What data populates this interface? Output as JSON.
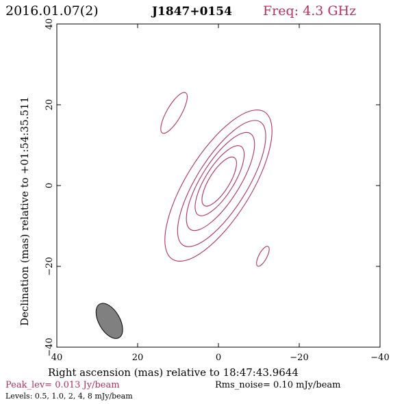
{
  "header": {
    "date": "2016.01.07(2)",
    "source": "J1847+0154",
    "frequency": "Freq: 4.3 GHz"
  },
  "footer": {
    "peak": "Peak_lev=  0.013 Jy/beam",
    "rms": "Rms_noise= 0.10 mJy/beam",
    "levels": "Levels: 0.5, 1.0,   2,   4,   8 mJy/beam"
  },
  "colors": {
    "contour": "#b03060",
    "beam_fill": "#808080",
    "axes": "#000000"
  },
  "chart_data": {
    "type": "contour",
    "title": "",
    "xlabel": "Right ascension (mas) relative to 18:47:43.9644",
    "ylabel": "Declination (mas) relative to +01:54:35.511",
    "xlim": [
      40,
      -40
    ],
    "ylim": [
      -40,
      40
    ],
    "x_ticks": [
      40,
      20,
      0,
      -20,
      -40
    ],
    "y_ticks": [
      -40,
      -20,
      0,
      20,
      40
    ],
    "x_tick_labels": [
      "40",
      "20",
      "0",
      "−20",
      "−40"
    ],
    "y_tick_labels": [
      "−40",
      "−20",
      "0",
      "20",
      "40"
    ],
    "contour_levels_mJy": [
      0.5,
      1.0,
      2,
      4,
      8
    ],
    "peak_Jy_per_beam": 0.013,
    "rms_mJy_per_beam": 0.1,
    "beam": {
      "x": 27,
      "y": -33.5,
      "major": 9.6,
      "minor": 5.2,
      "pa_deg": -30
    },
    "components": [
      {
        "name": "core-level-1",
        "x": 0,
        "y": 0,
        "major": 43,
        "minor": 16,
        "pa_deg": 148
      },
      {
        "name": "core-level-2",
        "x": -0.8,
        "y": 0.5,
        "major": 36,
        "minor": 12.5,
        "pa_deg": 148
      },
      {
        "name": "core-level-3",
        "x": -0.5,
        "y": 1,
        "major": 28,
        "minor": 9.5,
        "pa_deg": 148
      },
      {
        "name": "core-level-4",
        "x": -0.3,
        "y": 1.2,
        "major": 20,
        "minor": 7,
        "pa_deg": 148
      },
      {
        "name": "core-level-5",
        "x": -0.2,
        "y": 1,
        "major": 14,
        "minor": 5,
        "pa_deg": 148
      },
      {
        "name": "north-east-blob",
        "x": 11,
        "y": 18,
        "major": 11.5,
        "minor": 3.6,
        "pa_deg": 150
      },
      {
        "name": "south-west-blob",
        "x": -11,
        "y": -17.5,
        "major": 5.5,
        "minor": 2.0,
        "pa_deg": 152
      }
    ]
  }
}
